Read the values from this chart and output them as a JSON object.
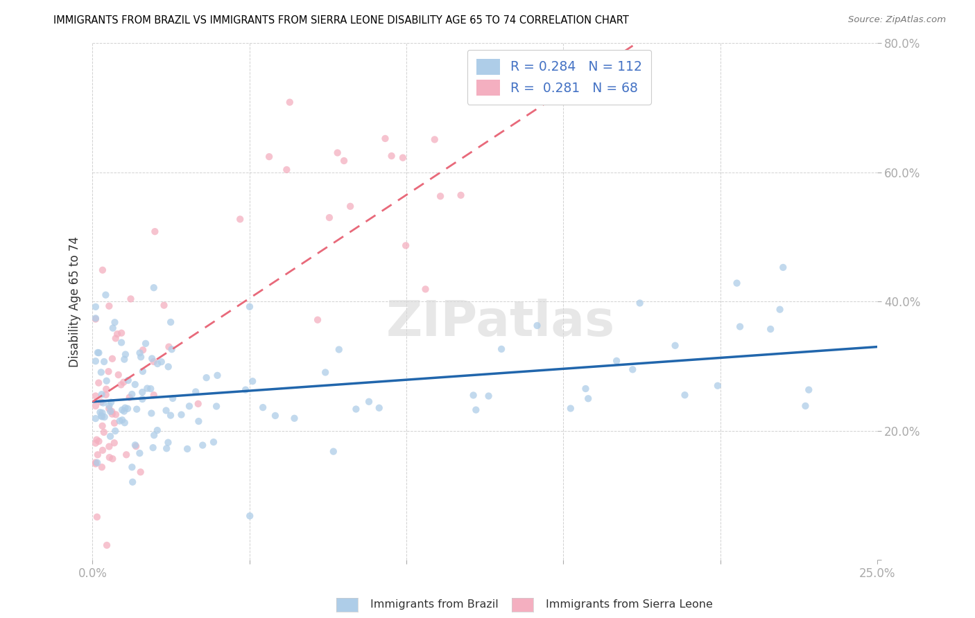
{
  "title": "IMMIGRANTS FROM BRAZIL VS IMMIGRANTS FROM SIERRA LEONE DISABILITY AGE 65 TO 74 CORRELATION CHART",
  "source": "Source: ZipAtlas.com",
  "xlabel_brazil": "Immigrants from Brazil",
  "xlabel_sierraleone": "Immigrants from Sierra Leone",
  "ylabel": "Disability Age 65 to 74",
  "xlim": [
    0.0,
    0.25
  ],
  "ylim": [
    0.0,
    0.8
  ],
  "brazil_color": "#aecde8",
  "sierraleone_color": "#f4afc0",
  "brazil_line_color": "#2166ac",
  "sierraleone_line_color": "#e8697a",
  "R_brazil": 0.284,
  "N_brazil": 112,
  "R_sierraleone": 0.281,
  "N_sierraleone": 68,
  "watermark_text": "ZIPatlas",
  "brazil_intercept": 0.245,
  "brazil_slope": 0.34,
  "sierra_intercept": 0.245,
  "sierra_slope": 3.2
}
